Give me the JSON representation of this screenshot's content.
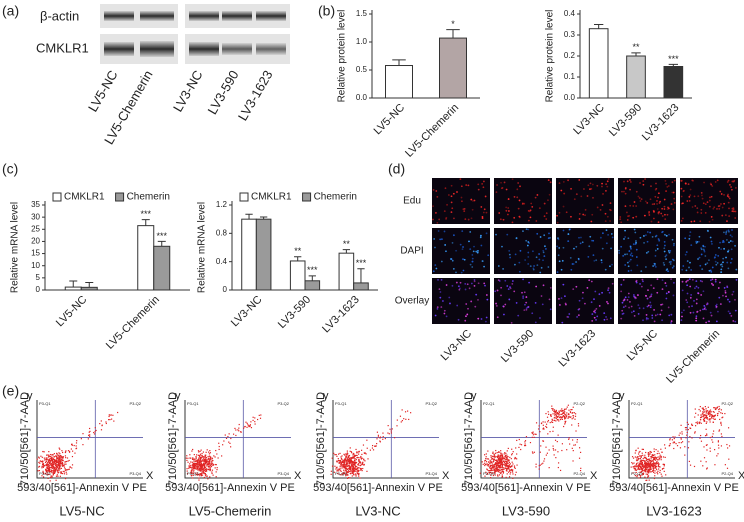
{
  "panel_labels": [
    "(a)",
    "(b)",
    "(c)",
    "(d)",
    "(e)"
  ],
  "blot": {
    "rows": [
      "β-actin",
      "CMKLR1"
    ],
    "lanes": [
      "LV5-NC",
      "LV5-Chemerin",
      "LV3-NC",
      "LV3-590",
      "LV3-1623"
    ]
  },
  "chart_data": [
    {
      "type": "bar",
      "ylabel": "Relative protein level",
      "categories": [
        "LV5-NC",
        "LV5-Chemerin"
      ],
      "values": [
        0.58,
        1.07
      ],
      "errors": [
        0.1,
        0.15
      ],
      "colors": [
        "#ffffff",
        "#b3a5a5"
      ],
      "labels": [
        null,
        "*"
      ],
      "ylim": [
        0,
        1.5
      ],
      "yticks": [
        {
          "value": 0,
          "label": "0.0"
        },
        {
          "value": 0.5,
          "label": "0.5"
        },
        {
          "value": 1,
          "label": "1.0"
        },
        {
          "value": 1.5,
          "label": "1.5"
        }
      ]
    },
    {
      "type": "bar",
      "ylabel": "Relative protein level",
      "categories": [
        "LV3-NC",
        "LV3-590",
        "LV3-1623"
      ],
      "values": [
        0.33,
        0.2,
        0.15
      ],
      "errors": [
        0.02,
        0.015,
        0.01
      ],
      "colors": [
        "#ffffff",
        "#c8c8c8",
        "#333333"
      ],
      "labels": [
        null,
        "**",
        "***"
      ],
      "ylim": [
        0,
        0.4
      ],
      "yticks": [
        {
          "value": 0,
          "label": "0.0"
        },
        0.1,
        0.2,
        0.3,
        0.4
      ]
    },
    {
      "type": "bar",
      "ylabel": "Relative mRNA level",
      "categories": [
        "LV5-NC",
        "LV5-Chemerin"
      ],
      "series": [
        {
          "name": "CMKLR1",
          "color": "#ffffff",
          "values": [
            1.2,
            26.5
          ],
          "errors": [
            2.5,
            2.5
          ],
          "labels": [
            null,
            "***"
          ]
        },
        {
          "name": "Chemerin",
          "color": "#9a9a9a",
          "values": [
            1.1,
            18
          ],
          "errors": [
            2,
            2
          ],
          "labels": [
            null,
            "***"
          ]
        }
      ],
      "ylim": [
        0,
        35
      ],
      "yticks": [
        0,
        5,
        10,
        15,
        20,
        25,
        30,
        35
      ]
    },
    {
      "type": "bar",
      "ylabel": "Relative mRNA level",
      "categories": [
        "LV3-NC",
        "LV3-590",
        "LV3-1623"
      ],
      "series": [
        {
          "name": "CMKLR1",
          "color": "#ffffff",
          "values": [
            1.0,
            0.41,
            0.52
          ],
          "errors": [
            0.07,
            0.06,
            0.05
          ],
          "labels": [
            null,
            "**",
            "**"
          ]
        },
        {
          "name": "Chemerin",
          "color": "#9a9a9a",
          "values": [
            1.0,
            0.13,
            0.1
          ],
          "errors": [
            0.03,
            0.07,
            0.2
          ],
          "labels": [
            null,
            "***",
            "***"
          ]
        }
      ],
      "ylim": [
        0,
        1.2
      ],
      "yticks": [
        0,
        0.4,
        0.8,
        1.2
      ]
    }
  ],
  "microscopy": {
    "rows": [
      "Edu",
      "DAPI",
      "Overlay"
    ],
    "columns": [
      "LV3-NC",
      "LV3-590",
      "LV3-1623",
      "LV5-NC",
      "LV5-Chemerin"
    ]
  },
  "flow": {
    "y_axis_label": "710/50[561]-7-AAD",
    "x_axis_label": "593/40[561]-Annexin V PE",
    "y_letter": "y",
    "x_letter": "X",
    "plots": [
      {
        "title": "LV5-NC",
        "quadrants": [
          "P3-Q1",
          "P3-Q2",
          "P3-Q3",
          "P3-Q4"
        ]
      },
      {
        "title": "LV5-Chemerin",
        "quadrants": [
          "P3-Q1",
          "P3-Q2",
          "P3-Q3",
          "P3-Q4"
        ]
      },
      {
        "title": "LV3-NC",
        "quadrants": [
          "P3-Q1",
          "P3-Q2",
          "P3-Q3",
          "P3-Q4"
        ]
      },
      {
        "title": "LV3-590",
        "quadrants": [
          "P2-Q1",
          "P2-Q2",
          "P2-Q3",
          "P2-Q4"
        ]
      },
      {
        "title": "LV3-1623",
        "quadrants": [
          "P2-Q1",
          "P2-Q2",
          "P2-Q3",
          "P2-Q4"
        ]
      }
    ]
  }
}
